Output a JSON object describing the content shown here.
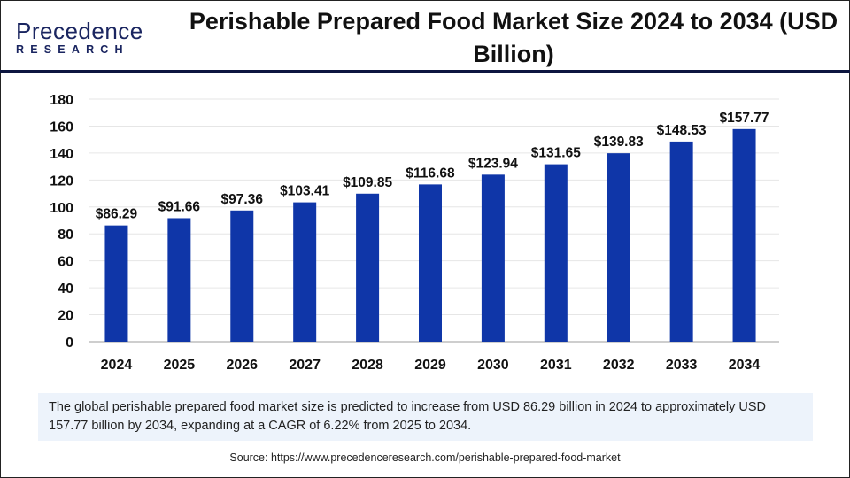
{
  "logo": {
    "line1": "Precedence",
    "line2": "RESEARCH"
  },
  "title": "Perishable Prepared Food Market Size 2024 to 2034 (USD Billion)",
  "colors": {
    "bar": "#0f36a8",
    "grid": "#e6e6e6",
    "axis": "#bdbdbd",
    "header_line": "#0d1640",
    "summary_bg": "#edf3fb"
  },
  "chart_data": {
    "type": "bar",
    "title": "Perishable Prepared Food Market Size 2024 to 2034 (USD Billion)",
    "categories": [
      "2024",
      "2025",
      "2026",
      "2027",
      "2028",
      "2029",
      "2030",
      "2031",
      "2032",
      "2033",
      "2034"
    ],
    "values": [
      86.29,
      91.66,
      97.36,
      103.41,
      109.85,
      116.68,
      123.94,
      131.65,
      139.83,
      148.53,
      157.77
    ],
    "data_labels": [
      "$86.29",
      "$91.66",
      "$97.36",
      "$103.41",
      "$109.85",
      "$116.68",
      "$123.94",
      "$131.65",
      "$139.83",
      "$148.53",
      "$157.77"
    ],
    "yticks": [
      0,
      20,
      40,
      60,
      80,
      100,
      120,
      140,
      160,
      180
    ],
    "ylim": [
      0,
      180
    ],
    "xlabel": "",
    "ylabel": "",
    "grid": true,
    "legend": "none"
  },
  "summary": "The global perishable prepared food market size is predicted to increase from USD 86.29 billion in 2024 to approximately USD 157.77 billion by 2034, expanding at a CAGR of 6.22% from 2025 to 2034.",
  "source": "Source: https://www.precedenceresearch.com/perishable-prepared-food-market"
}
